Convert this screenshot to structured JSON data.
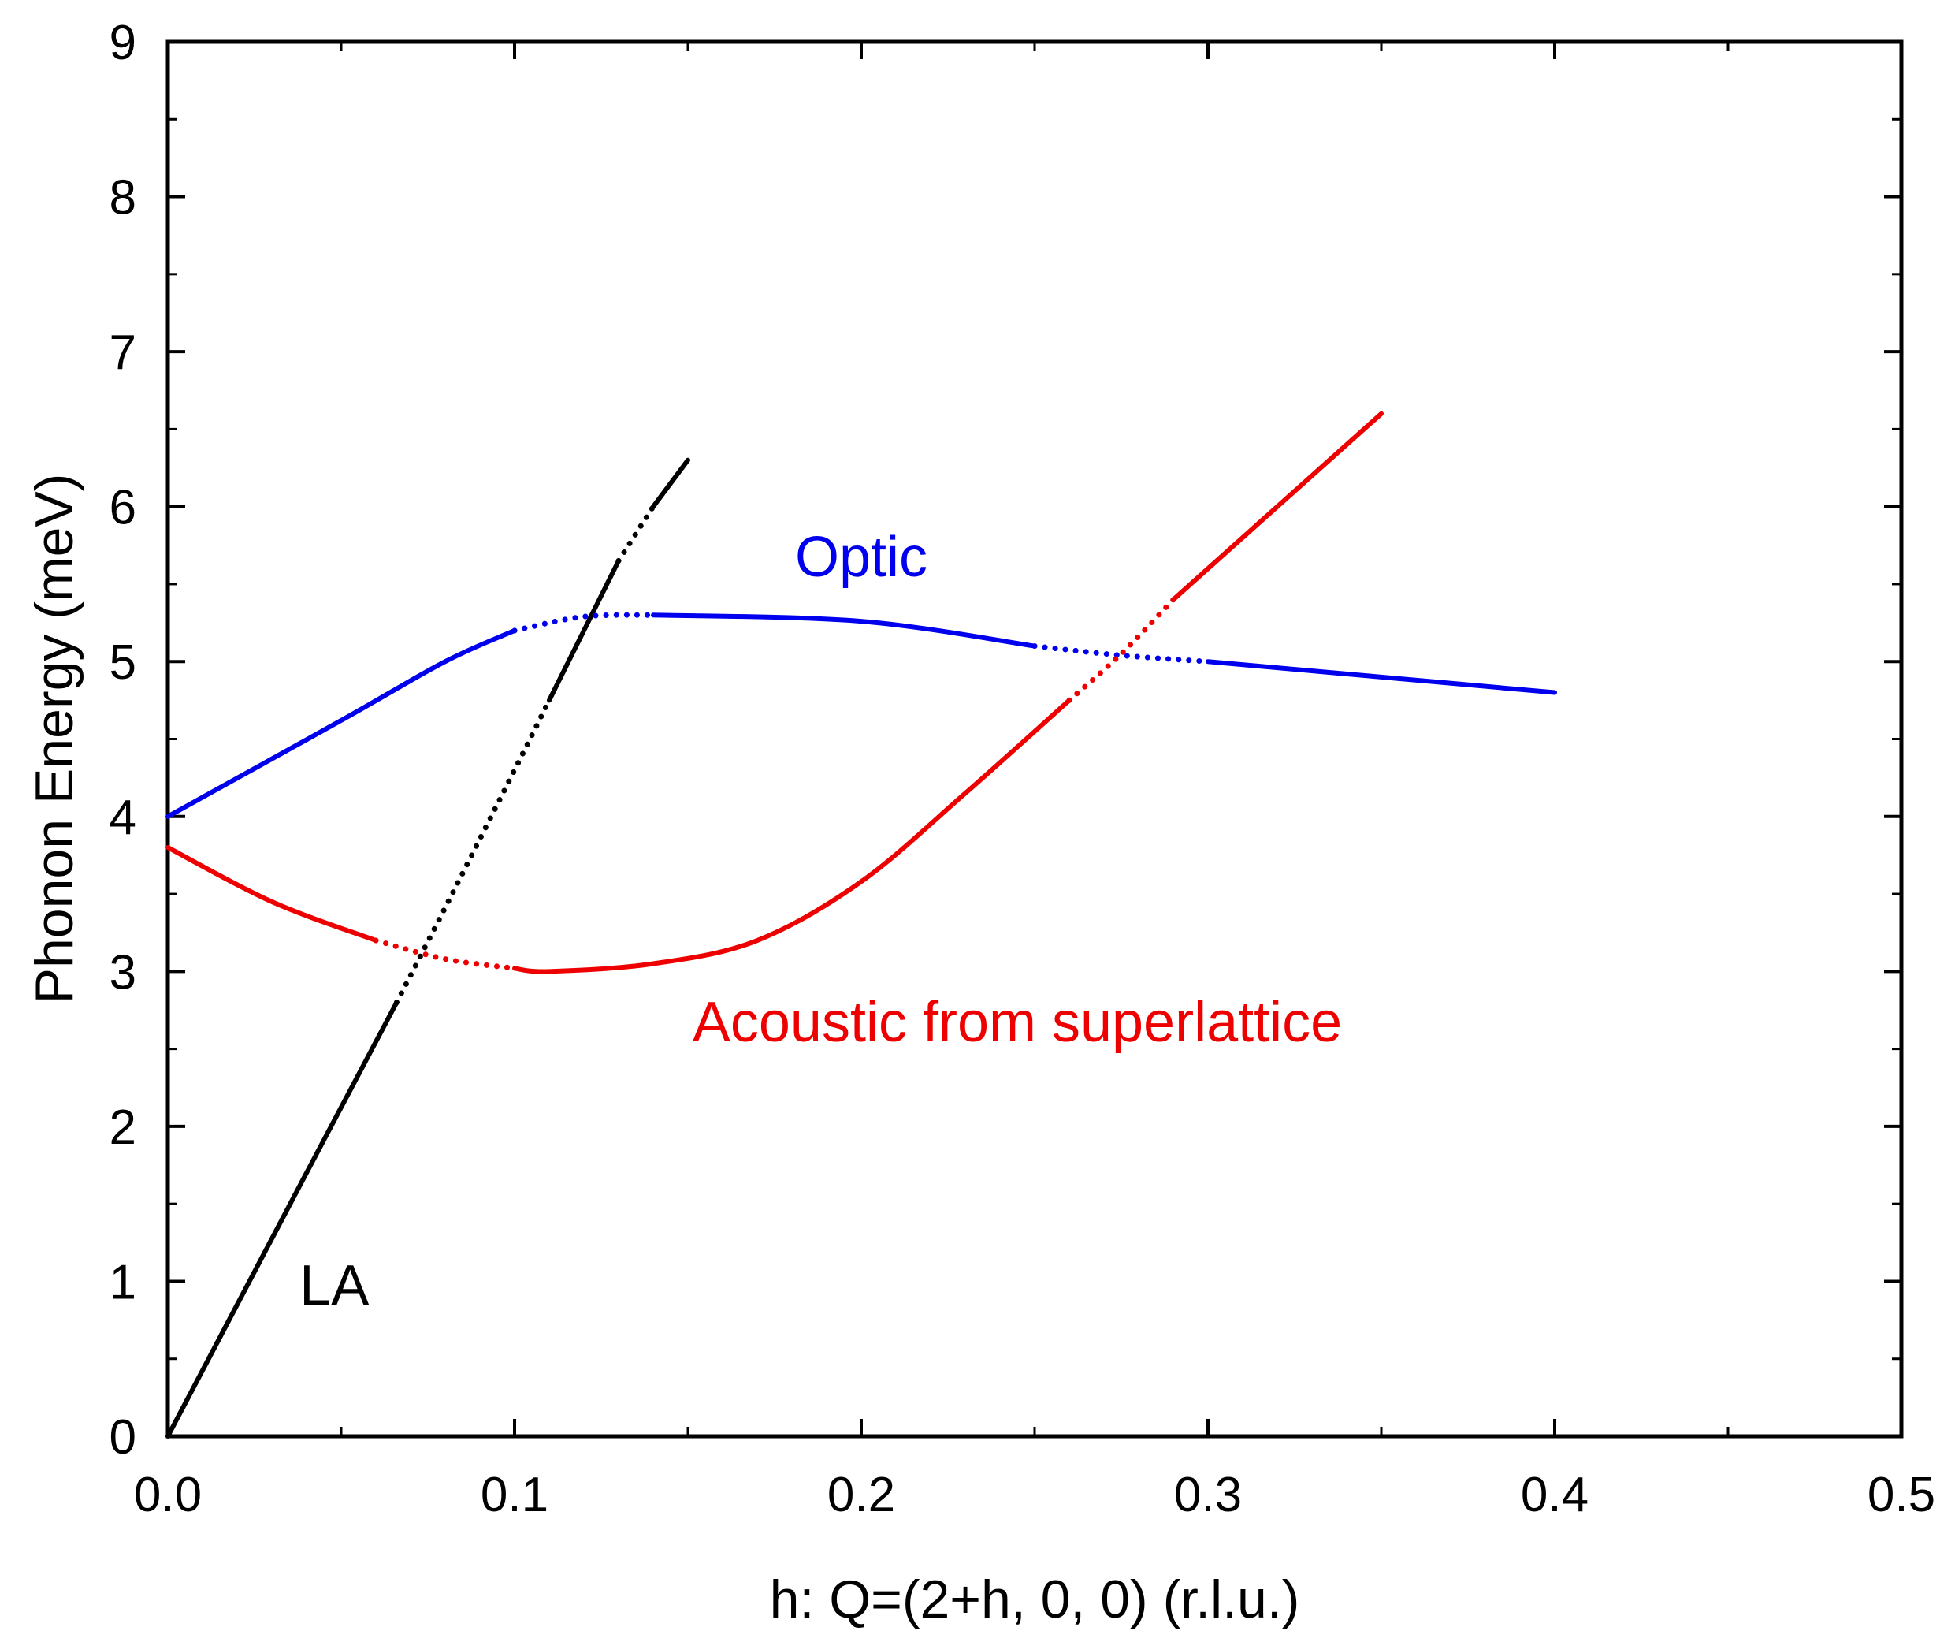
{
  "chart_data": {
    "type": "line",
    "title": "",
    "xlabel": "h: Q=(2+h, 0, 0) (r.l.u.)",
    "ylabel": "Phonon Energy (meV)",
    "xlim": [
      0.0,
      0.5
    ],
    "ylim": [
      0,
      9
    ],
    "xticks": [
      0.0,
      0.1,
      0.2,
      0.3,
      0.4,
      0.5
    ],
    "xtick_labels": [
      "0.0",
      "0.1",
      "0.2",
      "0.3",
      "0.4",
      "0.5"
    ],
    "yticks": [
      0,
      1,
      2,
      3,
      4,
      5,
      6,
      7,
      8,
      9
    ],
    "ytick_labels": [
      "0",
      "1",
      "2",
      "3",
      "4",
      "5",
      "6",
      "7",
      "8",
      "9"
    ],
    "grid": false,
    "series": [
      {
        "name": "LA",
        "label": "LA",
        "color": "#000000",
        "segments": [
          {
            "style": "solid",
            "points": [
              [
                0.0,
                0.0
              ],
              [
                0.02,
                0.85
              ],
              [
                0.04,
                1.7
              ],
              [
                0.066,
                2.8
              ]
            ]
          },
          {
            "style": "dotted",
            "points": [
              [
                0.066,
                2.8
              ],
              [
                0.082,
                3.5
              ],
              [
                0.1,
                4.3
              ],
              [
                0.11,
                4.75
              ]
            ]
          },
          {
            "style": "solid",
            "points": [
              [
                0.11,
                4.75
              ],
              [
                0.12,
                5.2
              ],
              [
                0.13,
                5.65
              ]
            ]
          },
          {
            "style": "dotted",
            "points": [
              [
                0.13,
                5.65
              ],
              [
                0.14,
                6.0
              ]
            ]
          },
          {
            "style": "solid",
            "points": [
              [
                0.14,
                6.0
              ],
              [
                0.15,
                6.3
              ]
            ]
          }
        ]
      },
      {
        "name": "Optic",
        "label": "Optic",
        "color": "#0000ee",
        "segments": [
          {
            "style": "solid",
            "points": [
              [
                0.0,
                4.0
              ],
              [
                0.05,
                4.62
              ],
              [
                0.08,
                5.0
              ],
              [
                0.1,
                5.2
              ]
            ]
          },
          {
            "style": "dotted",
            "points": [
              [
                0.1,
                5.2
              ],
              [
                0.12,
                5.29
              ],
              [
                0.14,
                5.3
              ]
            ]
          },
          {
            "style": "solid",
            "points": [
              [
                0.14,
                5.3
              ],
              [
                0.2,
                5.26
              ],
              [
                0.25,
                5.1
              ]
            ]
          },
          {
            "style": "dotted",
            "points": [
              [
                0.25,
                5.1
              ],
              [
                0.275,
                5.04
              ],
              [
                0.3,
                5.0
              ]
            ]
          },
          {
            "style": "solid",
            "points": [
              [
                0.3,
                5.0
              ],
              [
                0.35,
                4.9
              ],
              [
                0.4,
                4.8
              ]
            ]
          }
        ]
      },
      {
        "name": "Acoustic from superlattice",
        "label": "Acoustic from superlattice",
        "color": "#ee0000",
        "segments": [
          {
            "style": "solid",
            "points": [
              [
                0.0,
                3.8
              ],
              [
                0.03,
                3.45
              ],
              [
                0.06,
                3.2
              ]
            ]
          },
          {
            "style": "dotted",
            "points": [
              [
                0.06,
                3.2
              ],
              [
                0.08,
                3.08
              ],
              [
                0.1,
                3.02
              ]
            ]
          },
          {
            "style": "solid",
            "points": [
              [
                0.1,
                3.02
              ],
              [
                0.11,
                3.0
              ],
              [
                0.14,
                3.05
              ],
              [
                0.17,
                3.2
              ],
              [
                0.2,
                3.58
              ],
              [
                0.23,
                4.15
              ],
              [
                0.26,
                4.75
              ]
            ]
          },
          {
            "style": "dotted",
            "points": [
              [
                0.26,
                4.75
              ],
              [
                0.275,
                5.05
              ],
              [
                0.29,
                5.4
              ]
            ]
          },
          {
            "style": "solid",
            "points": [
              [
                0.29,
                5.4
              ],
              [
                0.32,
                6.0
              ],
              [
                0.35,
                6.6
              ]
            ]
          }
        ]
      }
    ],
    "annotations": [
      {
        "text": "LA",
        "x": 0.048,
        "y": 0.85,
        "color": "#000000"
      },
      {
        "text": "Optic",
        "x": 0.2,
        "y": 5.55,
        "color": "#0000ee"
      },
      {
        "text": "Acoustic from superlattice",
        "x": 0.245,
        "y": 2.55,
        "color": "#ee0000"
      }
    ]
  }
}
